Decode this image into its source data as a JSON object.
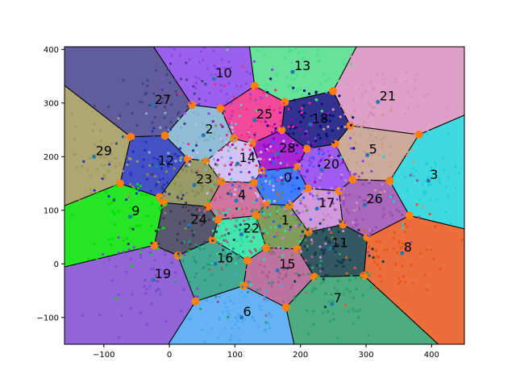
{
  "chart_data": {
    "type": "scatter",
    "subtype": "voronoi-diagram",
    "title": "",
    "xlabel": "",
    "ylabel": "",
    "xlim": [
      -160,
      450
    ],
    "ylim": [
      -150,
      405
    ],
    "xticks": [
      -100,
      0,
      100,
      200,
      300,
      400
    ],
    "yticks": [
      -100,
      0,
      100,
      200,
      300,
      400
    ],
    "grid": false,
    "legend": "none",
    "sites": [
      {
        "label": "0",
        "x": 172,
        "y": 150,
        "color": "#1f66ff"
      },
      {
        "label": "1",
        "x": 168,
        "y": 70,
        "color": "#6b8c3e"
      },
      {
        "label": "2",
        "x": 52,
        "y": 240,
        "color": "#7fb2cf"
      },
      {
        "label": "3",
        "x": 395,
        "y": 155,
        "color": "#1fd2da"
      },
      {
        "label": "4",
        "x": 102,
        "y": 118,
        "color": "#c85a8c"
      },
      {
        "label": "5",
        "x": 302,
        "y": 203,
        "color": "#c49c8a"
      },
      {
        "label": "6",
        "x": 110,
        "y": -100,
        "color": "#4aa6f2"
      },
      {
        "label": "7",
        "x": 248,
        "y": -75,
        "color": "#2e9e6a"
      },
      {
        "label": "8",
        "x": 355,
        "y": 20,
        "color": "#e8551a"
      },
      {
        "label": "9",
        "x": -60,
        "y": 88,
        "color": "#00e000"
      },
      {
        "label": "10",
        "x": 68,
        "y": 345,
        "color": "#8a44ea"
      },
      {
        "label": "11",
        "x": 245,
        "y": 28,
        "color": "#0f3b46"
      },
      {
        "label": "12",
        "x": -20,
        "y": 182,
        "color": "#2233bb"
      },
      {
        "label": "13",
        "x": 188,
        "y": 358,
        "color": "#4cdd8a"
      },
      {
        "label": "14",
        "x": 104,
        "y": 187,
        "color": "#cab8f2"
      },
      {
        "label": "15",
        "x": 165,
        "y": -12,
        "color": "#b05a8e"
      },
      {
        "label": "16",
        "x": 70,
        "y": 0,
        "color": "#239a7f"
      },
      {
        "label": "17",
        "x": 225,
        "y": 103,
        "color": "#c988d6"
      },
      {
        "label": "18",
        "x": 215,
        "y": 260,
        "color": "#0d0d7a"
      },
      {
        "label": "19",
        "x": -25,
        "y": -30,
        "color": "#7e4ad0"
      },
      {
        "label": "20",
        "x": 232,
        "y": 175,
        "color": "#8d40ef"
      },
      {
        "label": "21",
        "x": 318,
        "y": 302,
        "color": "#d98fbe"
      },
      {
        "label": "22",
        "x": 110,
        "y": 55,
        "color": "#27e0a0"
      },
      {
        "label": "23",
        "x": 38,
        "y": 147,
        "color": "#868a4e"
      },
      {
        "label": "24",
        "x": 30,
        "y": 72,
        "color": "#3a3a54"
      },
      {
        "label": "25",
        "x": 130,
        "y": 268,
        "color": "#ef2a8a"
      },
      {
        "label": "26",
        "x": 298,
        "y": 110,
        "color": "#9a4eb0"
      },
      {
        "label": "27",
        "x": -25,
        "y": 295,
        "color": "#45408a"
      },
      {
        "label": "28",
        "x": 165,
        "y": 205,
        "color": "#9a00c8"
      },
      {
        "label": "29",
        "x": -115,
        "y": 200,
        "color": "#a09858"
      }
    ]
  }
}
